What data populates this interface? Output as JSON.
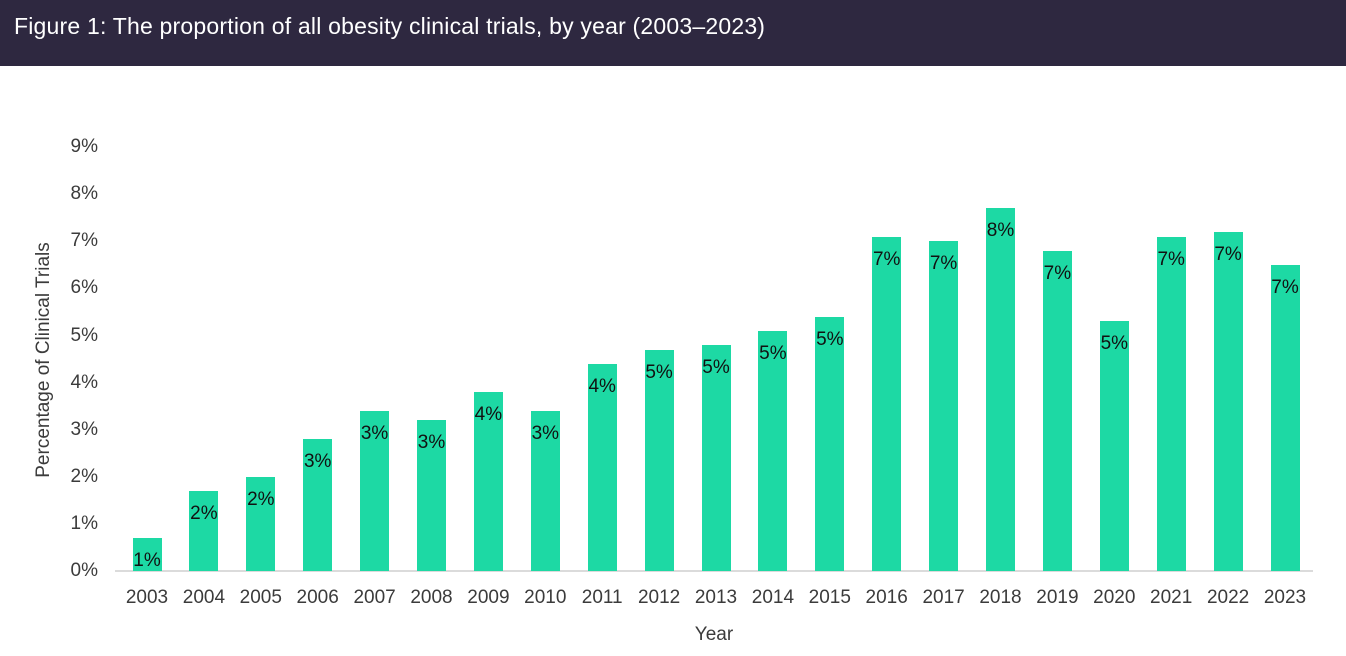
{
  "header": {
    "title": "Figure 1: The proportion of all obesity clinical trials, by year (2003–2023)",
    "bg_color": "#2E2840",
    "text_color": "#FFFFFF"
  },
  "chart_data": {
    "type": "bar",
    "title": "Figure 1: The proportion of all obesity clinical trials, by year (2003–2023)",
    "categories": [
      "2003",
      "2004",
      "2005",
      "2006",
      "2007",
      "2008",
      "2009",
      "2010",
      "2011",
      "2012",
      "2013",
      "2014",
      "2015",
      "2016",
      "2017",
      "2018",
      "2019",
      "2020",
      "2021",
      "2022",
      "2023"
    ],
    "values": [
      0.7,
      1.7,
      2.0,
      2.8,
      3.4,
      3.2,
      3.8,
      3.4,
      4.4,
      4.7,
      4.8,
      5.1,
      5.4,
      7.1,
      7.0,
      7.7,
      6.8,
      5.3,
      7.1,
      7.2,
      6.5
    ],
    "bar_labels": [
      "1%",
      "2%",
      "2%",
      "3%",
      "3%",
      "3%",
      "4%",
      "3%",
      "4%",
      "5%",
      "5%",
      "5%",
      "5%",
      "7%",
      "7%",
      "8%",
      "7%",
      "5%",
      "7%",
      "7%",
      "7%"
    ],
    "xlabel": "Year",
    "ylabel": "Percentage of Clinical Trials",
    "ylim": [
      0,
      9
    ],
    "ytick_labels": [
      "0%",
      "1%",
      "2%",
      "3%",
      "4%",
      "5%",
      "6%",
      "7%",
      "8%",
      "9%"
    ],
    "grid": false,
    "legend": false,
    "data_label_position": "inside-end",
    "bar_color": "#1DD9A4",
    "axis_line_color": "#DBDBDB",
    "tick_label_color": "#3B3B3B",
    "data_label_color": "#111111"
  }
}
